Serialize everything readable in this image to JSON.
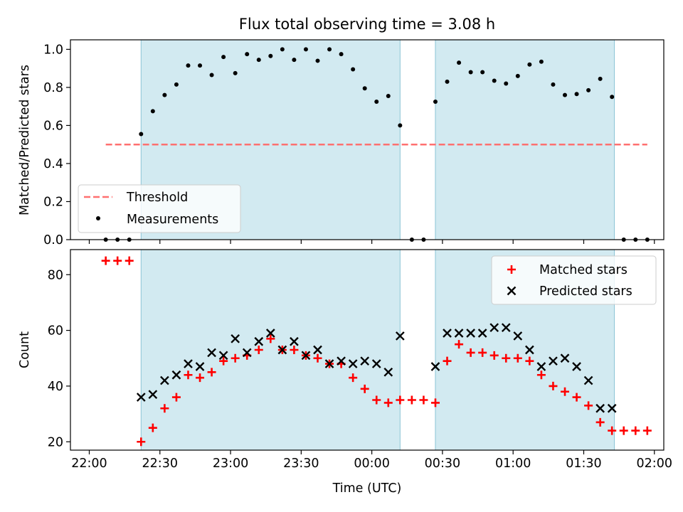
{
  "figure": {
    "title": "Flux total observing time = 3.08 h",
    "xlabel": "Time (UTC)"
  },
  "chart_data": [
    {
      "type": "scatter",
      "panel": "top",
      "title": "Flux total observing time = 3.08 h",
      "ylabel": "Matched/Predicted stars",
      "xlabel": "Time (UTC)",
      "x_axis": {
        "range": [
          "22:00",
          "02:00"
        ],
        "ticks": [
          "22:00",
          "22:30",
          "23:00",
          "23:30",
          "00:00",
          "00:30",
          "01:00",
          "01:30",
          "02:00"
        ],
        "show_tick_labels": false
      },
      "ylim": [
        0,
        1.05
      ],
      "yticks": [
        0.0,
        0.2,
        0.4,
        0.6,
        0.8,
        1.0
      ],
      "shaded_intervals": [
        [
          "22:22",
          "00:12"
        ],
        [
          "00:27",
          "01:43"
        ]
      ],
      "shade_color": "#add8e6",
      "legend": {
        "placement": "lower-left",
        "entries": [
          "Threshold",
          "Measurements"
        ]
      },
      "series": [
        {
          "name": "Threshold",
          "style": "dashed-line",
          "color": "#ff7070",
          "x": [
            "22:07",
            "01:57"
          ],
          "y": [
            0.5,
            0.5
          ]
        },
        {
          "name": "Measurements",
          "style": "dot",
          "color": "#000000",
          "x": [
            "22:07",
            "22:12",
            "22:17",
            "22:22",
            "22:27",
            "22:32",
            "22:37",
            "22:42",
            "22:47",
            "22:52",
            "22:57",
            "23:02",
            "23:07",
            "23:12",
            "23:17",
            "23:22",
            "23:27",
            "23:32",
            "23:37",
            "23:42",
            "23:47",
            "23:52",
            "23:57",
            "00:02",
            "00:07",
            "00:12",
            "00:17",
            "00:22",
            "00:27",
            "00:32",
            "00:37",
            "00:42",
            "00:47",
            "00:52",
            "00:57",
            "01:02",
            "01:07",
            "01:12",
            "01:17",
            "01:22",
            "01:27",
            "01:32",
            "01:37",
            "01:42",
            "01:47",
            "01:52",
            "01:57"
          ],
          "y": [
            0.0,
            0.0,
            0.0,
            0.555,
            0.675,
            0.76,
            0.815,
            0.915,
            0.915,
            0.865,
            0.96,
            0.875,
            0.975,
            0.945,
            0.965,
            1.0,
            0.945,
            1.0,
            0.94,
            1.0,
            0.975,
            0.895,
            0.795,
            0.725,
            0.755,
            0.6,
            0.0,
            0.0,
            0.725,
            0.83,
            0.93,
            0.88,
            0.88,
            0.835,
            0.82,
            0.86,
            0.92,
            0.935,
            0.815,
            0.76,
            0.765,
            0.785,
            0.845,
            0.75,
            0.0,
            0.0,
            0.0
          ]
        }
      ]
    },
    {
      "type": "scatter",
      "panel": "bottom",
      "ylabel": "Count",
      "xlabel": "Time (UTC)",
      "x_axis": {
        "range": [
          "22:00",
          "02:00"
        ],
        "ticks": [
          "22:00",
          "22:30",
          "23:00",
          "23:30",
          "00:00",
          "00:30",
          "01:00",
          "01:30",
          "02:00"
        ],
        "tick_labels": [
          "22:00",
          "22:30",
          "23:00",
          "23:30",
          "00:00",
          "00:30",
          "01:00",
          "01:30",
          "02:00"
        ]
      },
      "ylim": [
        17,
        89
      ],
      "yticks": [
        20,
        40,
        60,
        80
      ],
      "shaded_intervals": [
        [
          "22:22",
          "00:12"
        ],
        [
          "00:27",
          "01:43"
        ]
      ],
      "shade_color": "#add8e6",
      "legend": {
        "placement": "upper-right",
        "entries": [
          "Matched stars",
          "Predicted stars"
        ]
      },
      "series": [
        {
          "name": "Matched stars",
          "marker": "+",
          "color": "#ff0000",
          "x": [
            "22:07",
            "22:12",
            "22:17",
            "22:22",
            "22:27",
            "22:32",
            "22:37",
            "22:42",
            "22:47",
            "22:52",
            "22:57",
            "23:02",
            "23:07",
            "23:12",
            "23:17",
            "23:22",
            "23:27",
            "23:32",
            "23:37",
            "23:42",
            "23:47",
            "23:52",
            "23:57",
            "00:02",
            "00:07",
            "00:12",
            "00:17",
            "00:22",
            "00:27",
            "00:32",
            "00:37",
            "00:42",
            "00:47",
            "00:52",
            "00:57",
            "01:02",
            "01:07",
            "01:12",
            "01:17",
            "01:22",
            "01:27",
            "01:32",
            "01:37",
            "01:42",
            "01:47",
            "01:52",
            "01:57"
          ],
          "y": [
            85,
            85,
            85,
            20,
            25,
            32,
            36,
            44,
            43,
            45,
            49,
            50,
            51,
            53,
            57,
            53,
            53,
            51,
            50,
            48,
            48,
            43,
            39,
            35,
            34,
            35,
            35,
            35,
            34,
            49,
            55,
            52,
            52,
            51,
            50,
            50,
            49,
            44,
            40,
            38,
            36,
            33,
            27,
            24,
            24,
            24,
            24
          ]
        },
        {
          "name": "Predicted stars",
          "marker": "x",
          "color": "#000000",
          "x": [
            "22:22",
            "22:27",
            "22:32",
            "22:37",
            "22:42",
            "22:47",
            "22:52",
            "22:57",
            "23:02",
            "23:07",
            "23:12",
            "23:17",
            "23:22",
            "23:27",
            "23:32",
            "23:37",
            "23:42",
            "23:47",
            "23:52",
            "23:57",
            "00:02",
            "00:07",
            "00:12",
            "00:27",
            "00:32",
            "00:37",
            "00:42",
            "00:47",
            "00:52",
            "00:57",
            "01:02",
            "01:07",
            "01:12",
            "01:17",
            "01:22",
            "01:27",
            "01:32",
            "01:37",
            "01:42"
          ],
          "y": [
            36,
            37,
            42,
            44,
            48,
            47,
            52,
            51,
            57,
            52,
            56,
            59,
            53,
            56,
            51,
            53,
            48,
            49,
            48,
            49,
            48,
            45,
            58,
            47,
            59,
            59,
            59,
            59,
            61,
            61,
            58,
            53,
            47,
            49,
            50,
            47,
            42,
            32,
            32
          ]
        }
      ]
    }
  ]
}
